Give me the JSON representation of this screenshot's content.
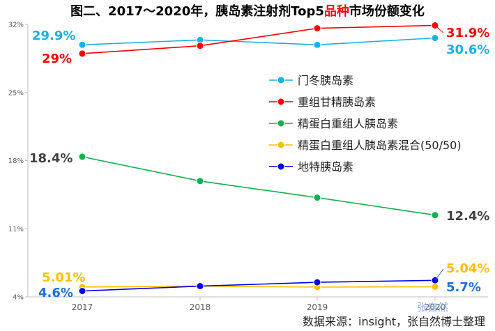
{
  "chart_data": {
    "type": "line",
    "title_parts": [
      "图二、2017～2020年，胰岛素注射剂Top5",
      "品种",
      "市场份额变化"
    ],
    "source": "数据来源：insight，张自然博士整理",
    "watermark": "张自然",
    "x": [
      "2017",
      "2018",
      "2019",
      "2020"
    ],
    "y_ticks": [
      "4%",
      "11%",
      "18%",
      "25%",
      "32%"
    ],
    "ylim": [
      4,
      32
    ],
    "grid": false,
    "legend_position": "right-middle",
    "series": [
      {
        "name": "门冬胰岛素",
        "color": "#1ab0e8",
        "values": [
          29.9,
          30.4,
          29.9,
          30.6
        ],
        "start_label": "29.9%",
        "end_label": "30.6%",
        "start_label_color": "#1ab0e8",
        "end_label_color": "#1ab0e8"
      },
      {
        "name": "重组甘精胰岛素",
        "color": "#ff0000",
        "values": [
          29.0,
          29.8,
          31.6,
          31.9
        ],
        "start_label": "29%",
        "end_label": "31.9%",
        "start_label_color": "#ff0000",
        "end_label_color": "#ff0000"
      },
      {
        "name": "精蛋白重组人胰岛素",
        "color": "#13b04d",
        "values": [
          18.4,
          15.9,
          14.2,
          12.4
        ],
        "start_label": "18.4%",
        "end_label": "12.4%",
        "start_label_color": "#404040",
        "end_label_color": "#404040"
      },
      {
        "name": "精蛋白重组人胰岛素混合(50/50)",
        "color": "#ffc000",
        "values": [
          5.01,
          5.1,
          5.0,
          5.04
        ],
        "start_label": "5.01%",
        "end_label": "5.04%",
        "start_label_color": "#ffc000",
        "end_label_color": "#ffc000"
      },
      {
        "name": "地特胰岛素",
        "color": "#0000ee",
        "values": [
          4.6,
          5.1,
          5.5,
          5.7
        ],
        "start_label": "4.6%",
        "end_label": "5.7%",
        "start_label_color": "#1f6fd6",
        "end_label_color": "#1f6fd6"
      }
    ]
  }
}
